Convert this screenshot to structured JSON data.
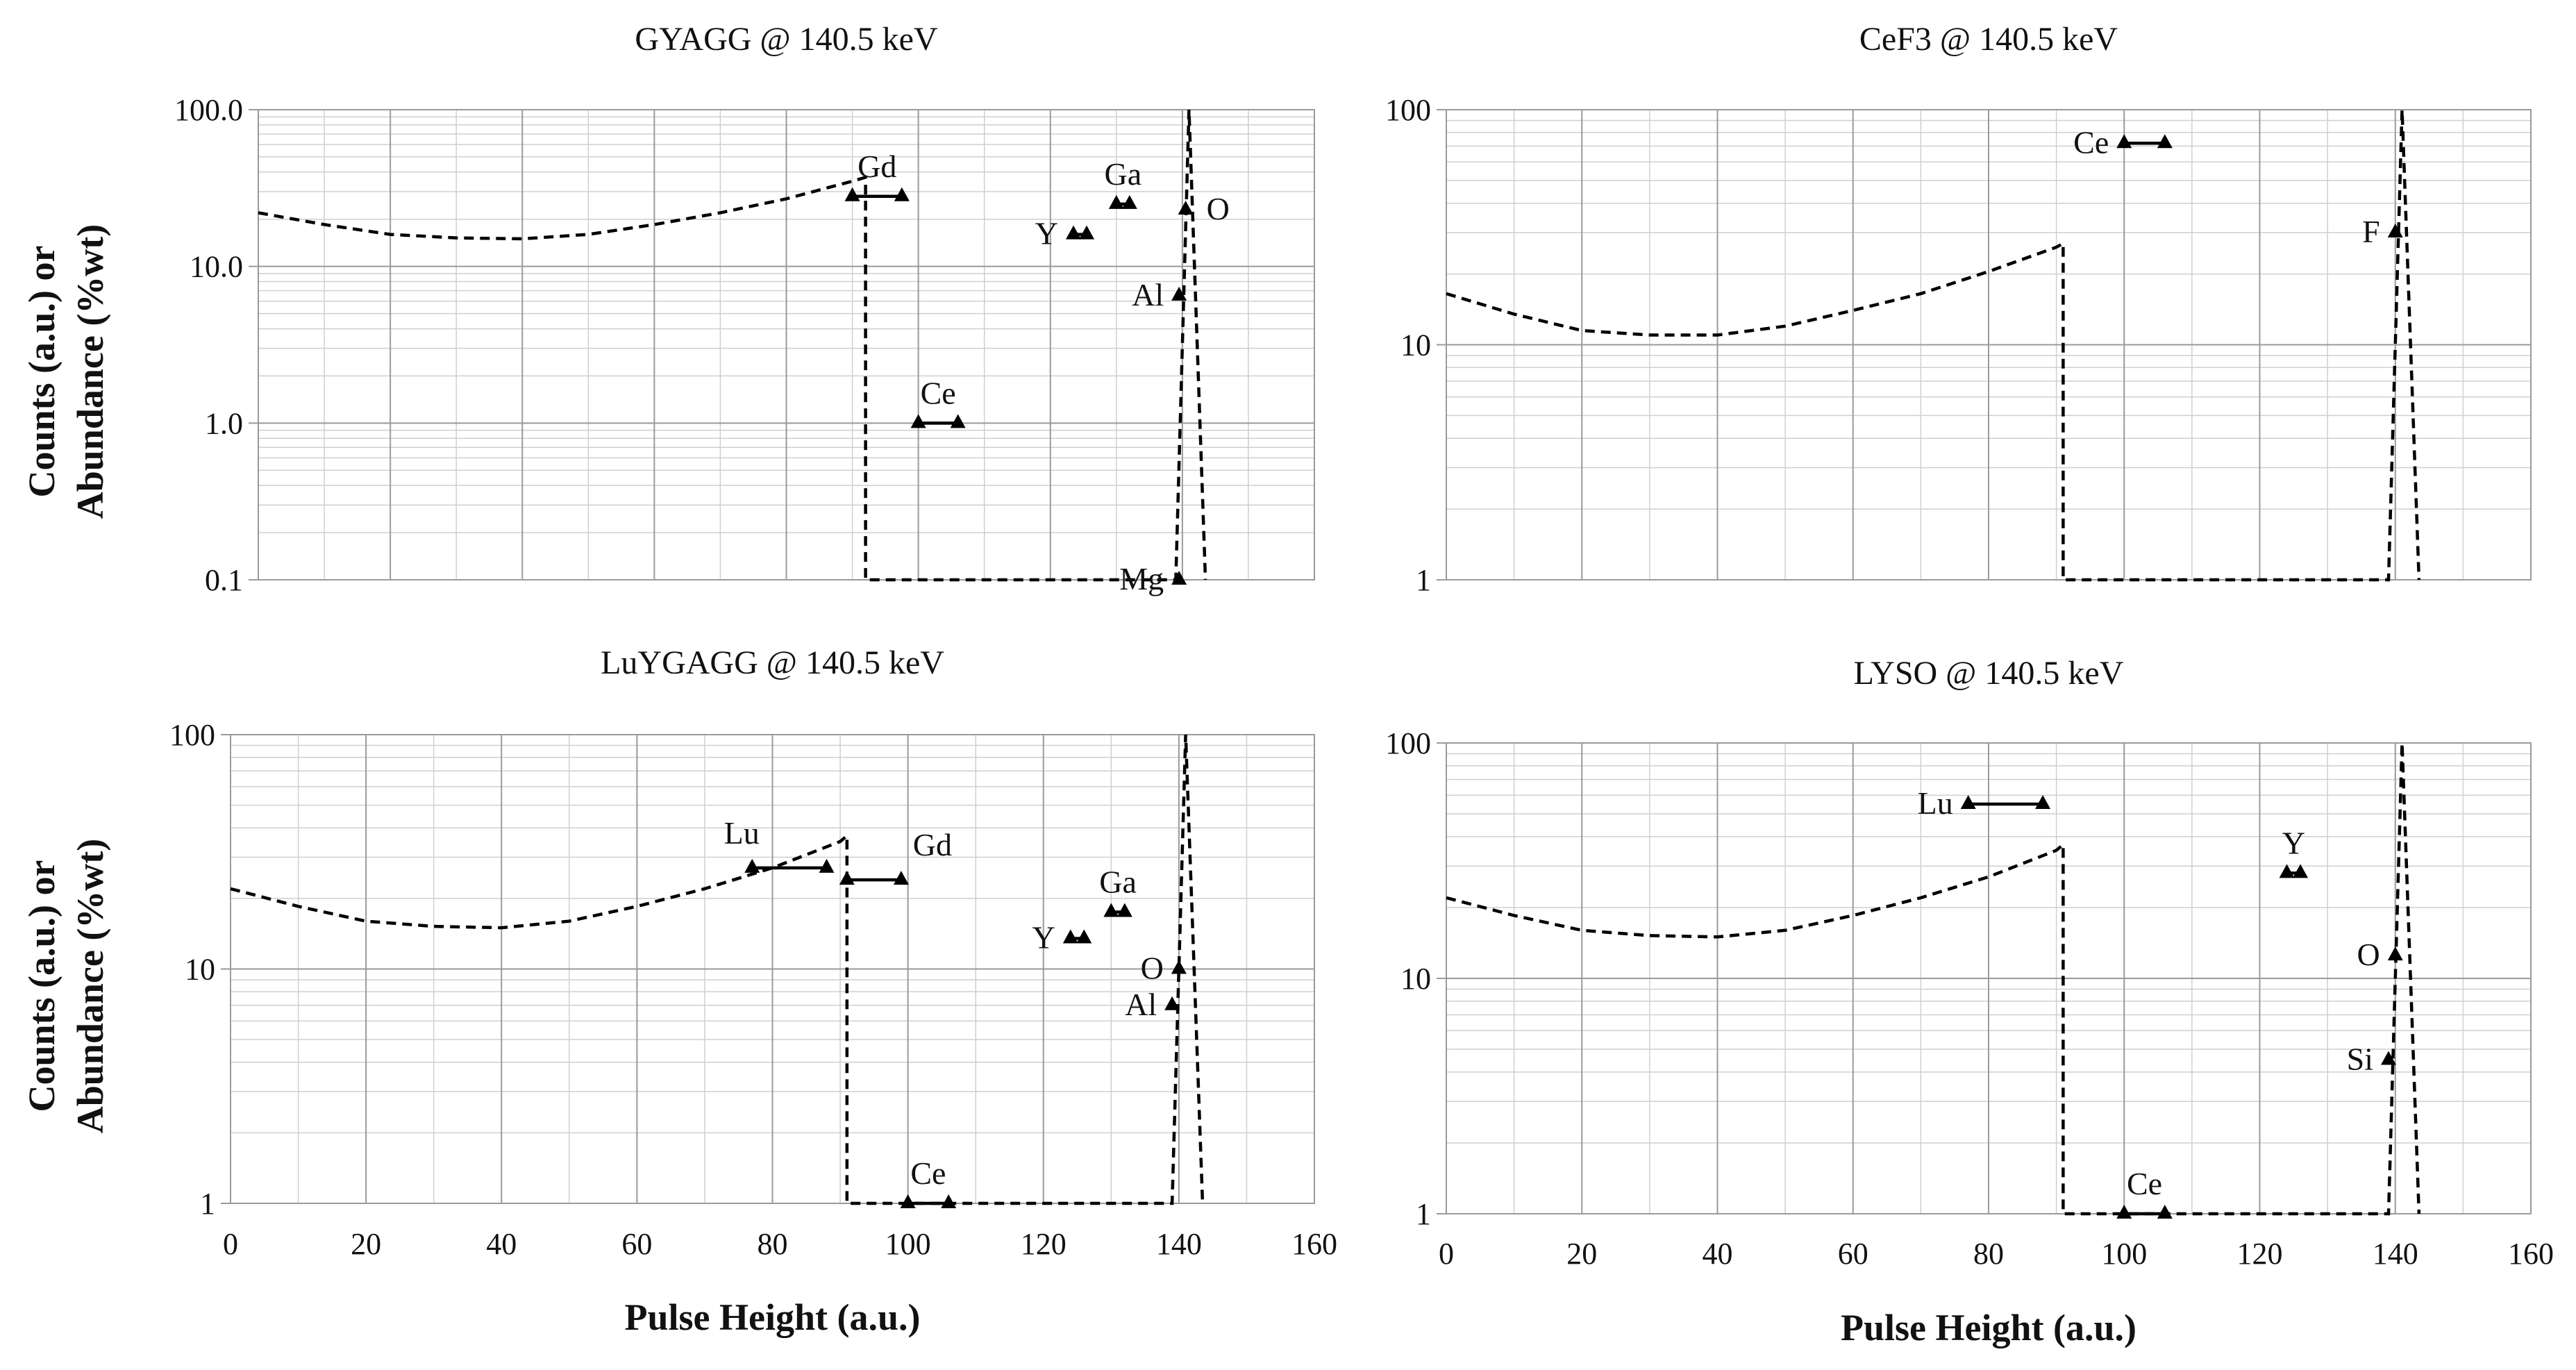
{
  "figure": {
    "ylabel_line1": "Counts (a.u.) or",
    "ylabel_line2": "Abundance (%wt)",
    "xlabel": "Pulse Height (a.u.)"
  },
  "chart_data": [
    {
      "type": "line",
      "title": "GYAGG @ 140.5 keV",
      "xlabel": "",
      "ylabel": "Counts (a.u.) or Abundance (%wt)",
      "xlim": [
        0,
        160
      ],
      "ylim": [
        0.1,
        100
      ],
      "yscale": "log",
      "ytick_labels": [
        "0.1",
        "1.0",
        "10.0",
        "100.0"
      ],
      "xtick_labels": [],
      "spectrum": {
        "x": [
          0,
          10,
          20,
          30,
          40,
          50,
          60,
          70,
          80,
          90,
          92,
          92,
          139,
          141,
          143.5
        ],
        "y": [
          22,
          18.5,
          16,
          15.2,
          15,
          16,
          18.5,
          22,
          27,
          35,
          37,
          0.1,
          0.1,
          100,
          0.1
        ]
      },
      "elements": [
        {
          "label": "Gd",
          "x": [
            90,
            97.5
          ],
          "y": 28,
          "label_side": "above"
        },
        {
          "label": "Ce",
          "x": [
            100,
            106
          ],
          "y": 1.0,
          "label_side": "above"
        },
        {
          "label": "Y",
          "x": [
            123.5,
            125.5
          ],
          "y": 16,
          "label_side": "left"
        },
        {
          "label": "Ga",
          "x": [
            130,
            132
          ],
          "y": 25,
          "label_side": "above"
        },
        {
          "label": "O",
          "x": [
            140.5
          ],
          "y": 23,
          "label_side": "right"
        },
        {
          "label": "Al",
          "x": [
            139.5
          ],
          "y": 6.5,
          "label_side": "left"
        },
        {
          "label": "Mg",
          "x": [
            139.5
          ],
          "y": 0.1,
          "label_side": "left"
        }
      ]
    },
    {
      "type": "line",
      "title": "CeF3 @ 140.5 keV",
      "xlabel": "",
      "ylabel": "",
      "xlim": [
        0,
        160
      ],
      "ylim": [
        1,
        100
      ],
      "yscale": "log",
      "ytick_labels": [
        "1",
        "10",
        "100"
      ],
      "xtick_labels": [],
      "spectrum": {
        "x": [
          0,
          10,
          20,
          30,
          40,
          50,
          60,
          70,
          80,
          90,
          91,
          91,
          139,
          141,
          143.5
        ],
        "y": [
          16.5,
          13.5,
          11.5,
          11,
          11,
          12,
          14,
          16.5,
          20.5,
          26,
          27,
          1,
          1,
          100,
          1
        ]
      },
      "elements": [
        {
          "label": "Ce",
          "x": [
            100,
            106
          ],
          "y": 72,
          "label_side": "left"
        },
        {
          "label": "F",
          "x": [
            140
          ],
          "y": 30,
          "label_side": "left"
        }
      ]
    },
    {
      "type": "line",
      "title": "LuYGAGG @ 140.5 keV",
      "xlabel": "Pulse Height (a.u.)",
      "ylabel": "Counts (a.u.) or Abundance (%wt)",
      "xlim": [
        0,
        160
      ],
      "ylim": [
        1,
        100
      ],
      "yscale": "log",
      "ytick_labels": [
        "1",
        "10",
        "100"
      ],
      "xtick_labels": [
        "0",
        "20",
        "40",
        "60",
        "80",
        "100",
        "120",
        "140",
        "160"
      ],
      "spectrum": {
        "x": [
          0,
          10,
          20,
          30,
          40,
          50,
          60,
          70,
          80,
          90,
          91,
          91,
          139,
          141,
          143.5
        ],
        "y": [
          22,
          18.5,
          16,
          15.2,
          15,
          16,
          18.5,
          22,
          27,
          35,
          37,
          1,
          1,
          100,
          1
        ]
      },
      "elements": [
        {
          "label": "Lu",
          "x": [
            77,
            88
          ],
          "y": 27,
          "label_side": "above-left"
        },
        {
          "label": "Gd",
          "x": [
            91,
            99
          ],
          "y": 24,
          "label_side": "above-right"
        },
        {
          "label": "Y",
          "x": [
            124,
            126
          ],
          "y": 13.5,
          "label_side": "left"
        },
        {
          "label": "Ga",
          "x": [
            130,
            132
          ],
          "y": 17.5,
          "label_side": "above"
        },
        {
          "label": "O",
          "x": [
            140
          ],
          "y": 10,
          "label_side": "left"
        },
        {
          "label": "Al",
          "x": [
            139
          ],
          "y": 7,
          "label_side": "left"
        },
        {
          "label": "Ce",
          "x": [
            100,
            106
          ],
          "y": 1,
          "label_side": "above"
        }
      ]
    },
    {
      "type": "line",
      "title": "LYSO @ 140.5 keV",
      "xlabel": "Pulse Height (a.u.)",
      "ylabel": "",
      "xlim": [
        0,
        160
      ],
      "ylim": [
        1,
        100
      ],
      "yscale": "log",
      "ytick_labels": [
        "1",
        "10",
        "100"
      ],
      "xtick_labels": [
        "0",
        "20",
        "40",
        "60",
        "80",
        "100",
        "120",
        "140",
        "160"
      ],
      "spectrum": {
        "x": [
          0,
          10,
          20,
          30,
          40,
          50,
          60,
          70,
          80,
          90,
          91,
          91,
          139,
          141,
          143.5
        ],
        "y": [
          22,
          18.5,
          16,
          15.2,
          15,
          16,
          18.5,
          22,
          27,
          35,
          37,
          1,
          1,
          100,
          1
        ]
      },
      "elements": [
        {
          "label": "Lu",
          "x": [
            77,
            88
          ],
          "y": 55,
          "label_side": "left"
        },
        {
          "label": "Y",
          "x": [
            124,
            126
          ],
          "y": 28,
          "label_side": "above"
        },
        {
          "label": "O",
          "x": [
            140
          ],
          "y": 12.5,
          "label_side": "left"
        },
        {
          "label": "Si",
          "x": [
            139
          ],
          "y": 4.5,
          "label_side": "left"
        },
        {
          "label": "Ce",
          "x": [
            100,
            106
          ],
          "y": 1,
          "label_side": "above"
        }
      ]
    }
  ]
}
